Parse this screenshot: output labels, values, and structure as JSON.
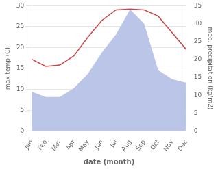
{
  "chart_data": {
    "type": "line",
    "xlabel": "date (month)",
    "ylabel": "max temp (C)",
    "y2label": "med. precipitation (kg/m2)",
    "categories": [
      "Jan",
      "Feb",
      "Mar",
      "Apr",
      "May",
      "Jun",
      "Jul",
      "Aug",
      "Sep",
      "Oct",
      "Nov",
      "Dec"
    ],
    "series": [
      {
        "type": "area",
        "axis": "y2",
        "color": "#bbc5e8",
        "values": [
          11.0,
          9.5,
          9.5,
          12.0,
          16.0,
          22.0,
          27.0,
          34.0,
          30.0,
          17.0,
          14.5,
          13.5
        ]
      },
      {
        "type": "line",
        "color": "#cc4444",
        "values": [
          17.2,
          15.5,
          15.8,
          18.0,
          22.5,
          26.5,
          29.0,
          29.2,
          29.0,
          27.5,
          23.5,
          19.5
        ]
      }
    ],
    "ylim": [
      0,
      30
    ],
    "yticks": [
      0,
      5,
      10,
      15,
      20,
      25,
      30
    ],
    "y2lim": [
      0,
      35
    ],
    "y2ticks": [
      0,
      5,
      10,
      15,
      20,
      25,
      30,
      35
    ],
    "grid": true
  }
}
